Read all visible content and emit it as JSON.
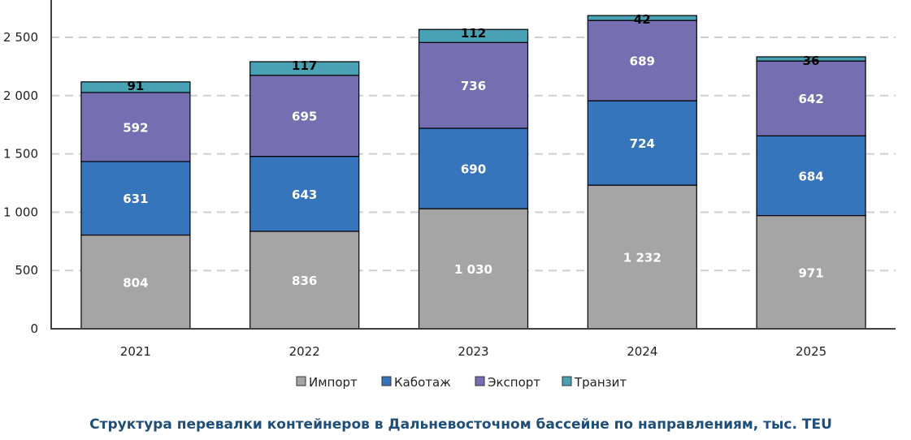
{
  "chart_data": {
    "type": "bar",
    "stacked": true,
    "title": "Структура перевалки контейнеров в Дальневосточном бассейне по направлениям, тыс. TEU",
    "xlabel": "",
    "ylabel": "",
    "categories": [
      "2021",
      "2022",
      "2023",
      "2024",
      "2025"
    ],
    "series": [
      {
        "name": "Импорт",
        "values": [
          804,
          836,
          1030,
          1232,
          971
        ],
        "labels": [
          "804",
          "836",
          "1 030",
          "1 232",
          "971"
        ],
        "color": "#a5a5a5",
        "label_color": "#ffffff"
      },
      {
        "name": "Каботаж",
        "values": [
          631,
          643,
          690,
          724,
          684
        ],
        "labels": [
          "631",
          "643",
          "690",
          "724",
          "684"
        ],
        "color": "#3674bc",
        "label_color": "#ffffff"
      },
      {
        "name": "Экспорт",
        "values": [
          592,
          695,
          736,
          689,
          642
        ],
        "labels": [
          "592",
          "695",
          "736",
          "689",
          "642"
        ],
        "color": "#756eb0",
        "label_color": "#ffffff"
      },
      {
        "name": "Транзит",
        "values": [
          91,
          117,
          112,
          42,
          36
        ],
        "labels": [
          "91",
          "117",
          "112",
          "42",
          "36"
        ],
        "color": "#48a2b4",
        "label_color": "#000000"
      }
    ],
    "yticks": [
      0,
      500,
      1000,
      1500,
      2000,
      2500
    ],
    "ytick_labels": [
      "0",
      "500",
      "1 000",
      "1 500",
      "2 000",
      "2 500"
    ],
    "ylim": [
      0,
      2820
    ],
    "grid": true,
    "legend": "bottom"
  }
}
